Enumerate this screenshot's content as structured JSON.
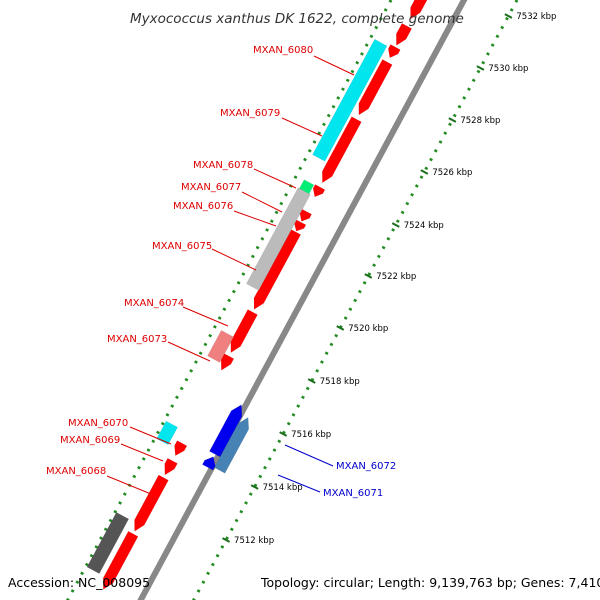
{
  "title": "Myxococcus xanthus DK 1622, complete genome",
  "accession": "Accession: NC_008095",
  "topology": "Topology: circular; Length: 9,139,763 bp; Genes: 7,410",
  "colors": {
    "forward": "#ff0000",
    "reverse": "#0000ee",
    "reverse_alt": "#4682b4",
    "cyan": "#00e5ee",
    "gray": "#bbbbbb",
    "pink": "#f08080",
    "green": "#00ee76",
    "dark_gray": "#555555",
    "label_red": "#dd0000",
    "label_blue": "#0000cc",
    "dots": "#228b22",
    "backbone": "#888888"
  },
  "ticks": [
    "7532 kbp",
    "7530 kbp",
    "7528 kbp",
    "7526 kbp",
    "7524 kbp",
    "7522 kbp",
    "7520 kbp",
    "7518 kbp",
    "7516 kbp",
    "7514 kbp",
    "7512 kbp"
  ],
  "left_labels": [
    "MXAN_6080",
    "MXAN_6079",
    "MXAN_6078",
    "MXAN_6077",
    "MXAN_6076",
    "MXAN_6075",
    "MXAN_6074",
    "MXAN_6073",
    "MXAN_6070",
    "MXAN_6069",
    "MXAN_6068"
  ],
  "right_labels": [
    "MXAN_6072",
    "MXAN_6071"
  ]
}
